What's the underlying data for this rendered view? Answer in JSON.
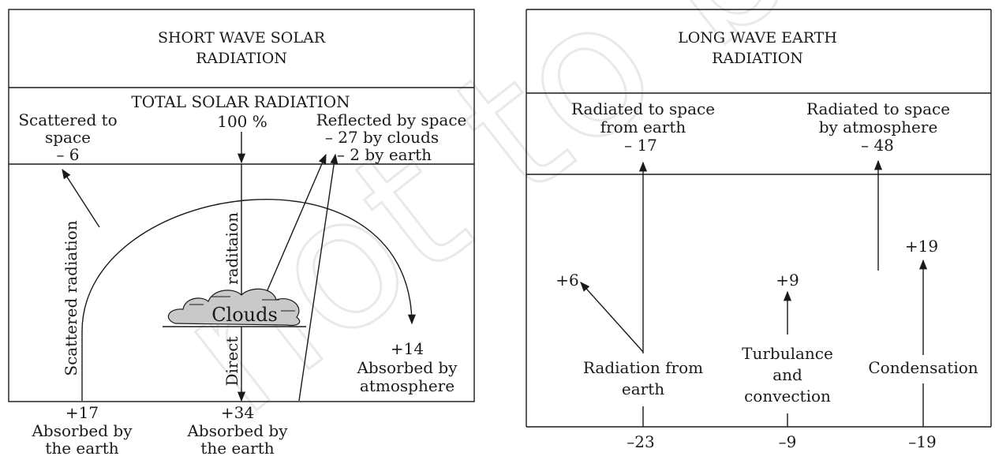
{
  "watermark": "not to be",
  "left_panel": {
    "title_line1": "SHORT WAVE SOLAR",
    "title_line2": "RADIATION",
    "total_label": "TOTAL SOLAR RADIATION",
    "total_value": "100 %",
    "scattered_space_1": "Scattered to",
    "scattered_space_2": "space",
    "scattered_space_3": "– 6",
    "reflected_1": "Reflected by space",
    "reflected_2": "– 27 by clouds",
    "reflected_3": "– 2 by earth",
    "scattered_radiation": "Scattered radiation",
    "direct": "Direct",
    "radiation_vertical": "raditaion",
    "clouds": "Clouds",
    "atm_value": "+14",
    "atm_1": "Absorbed by",
    "atm_2": "atmosphere",
    "earth_scatter_value": "+17",
    "earth_scatter_1": "Absorbed by",
    "earth_scatter_2": "the earth",
    "earth_direct_value": "+34",
    "earth_direct_1": "Absorbed by",
    "earth_direct_2": "the earth"
  },
  "right_panel": {
    "title_line1": "LONG WAVE EARTH",
    "title_line2": "RADIATION",
    "earth_space_1": "Radiated to space",
    "earth_space_2": "from earth",
    "earth_space_3": "– 17",
    "atm_space_1": "Radiated to space",
    "atm_space_2": "by atmosphere",
    "atm_space_3": "– 48",
    "plus6": "+6",
    "plus9": "+9",
    "plus19": "+19",
    "radiation_1": "Radiation from",
    "radiation_2": "earth",
    "turb_1": "Turbulance",
    "turb_2": "and",
    "turb_3": "convection",
    "condensation": "Condensation",
    "minus23": "–23",
    "minus9": "–9",
    "minus19": "–19"
  }
}
